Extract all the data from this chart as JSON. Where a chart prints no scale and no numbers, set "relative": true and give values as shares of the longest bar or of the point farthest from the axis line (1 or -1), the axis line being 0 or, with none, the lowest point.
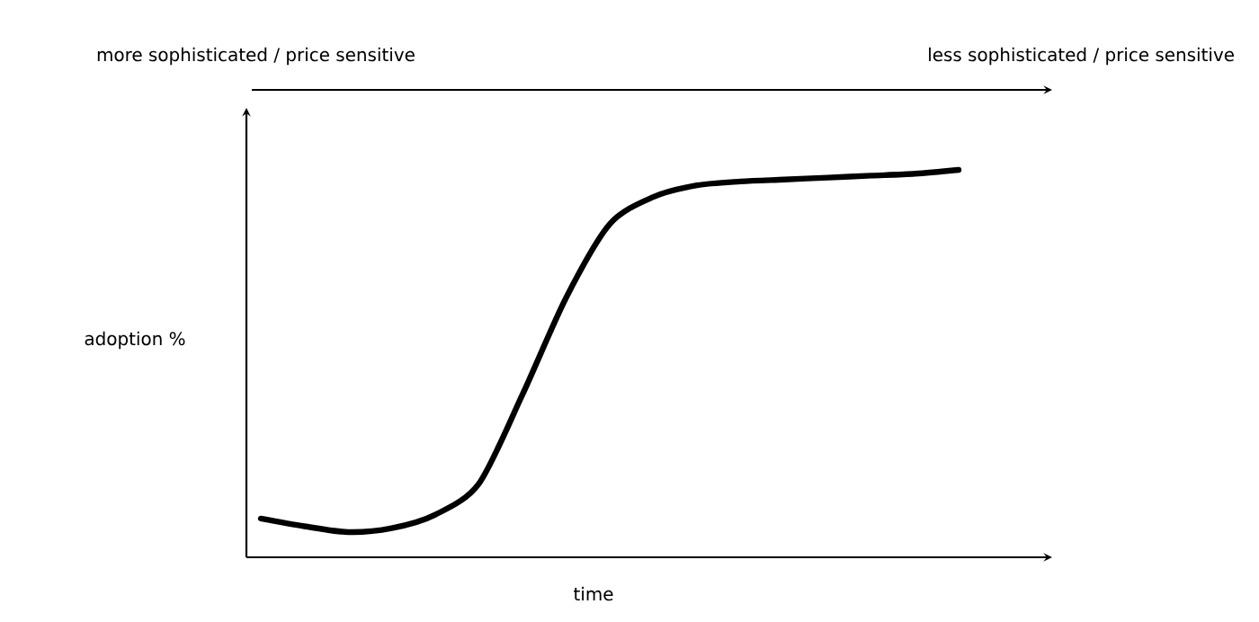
{
  "chart_data": {
    "type": "line",
    "relative": true,
    "ylabel": "adoption %",
    "xlabel": "time",
    "annotations": [
      "more sophisticated / price sensitive",
      "less sophisticated / price sensitive"
    ],
    "categories": [
      null,
      null,
      null,
      null,
      null,
      null,
      null,
      null,
      null,
      null,
      null,
      null,
      null,
      null,
      null,
      null,
      null
    ],
    "series": [
      {
        "color": "#000000",
        "values": [
          0.1,
          0.08,
          0.065,
          0.075,
          0.11,
          0.19,
          0.42,
          0.67,
          0.86,
          0.93,
          0.96,
          0.97,
          0.975,
          0.98,
          0.985,
          0.99,
          1.0
        ]
      }
    ],
    "marker": "none",
    "line_style": "solid"
  }
}
